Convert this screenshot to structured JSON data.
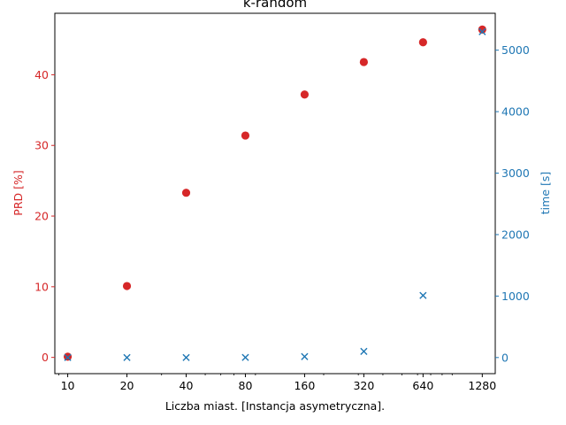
{
  "chart_data": {
    "type": "scatter",
    "title": "k-random",
    "xlabel": "Liczba miast. [Instancja asymetryczna].",
    "ylabel_left": "PRD [%]",
    "ylabel_right": "time [s]",
    "x_scale": "log2",
    "x_ticks": [
      10,
      20,
      40,
      80,
      160,
      320,
      640,
      1280
    ],
    "x_tick_labels": [
      "10",
      "20",
      "40",
      "80",
      "160",
      "320",
      "640",
      "1280"
    ],
    "y_left_ticks": [
      0,
      10,
      20,
      30,
      40
    ],
    "y_left_tick_labels": [
      "0",
      "10",
      "20",
      "30",
      "40"
    ],
    "y_right_ticks": [
      0,
      1000,
      2000,
      3000,
      4000,
      5000
    ],
    "y_right_tick_labels": [
      "0",
      "1000",
      "2000",
      "3000",
      "4000",
      "5000"
    ],
    "y_left_lim": [
      -2.3,
      48.7
    ],
    "y_right_lim": [
      -262,
      5600
    ],
    "grid": false,
    "series": [
      {
        "axis": "left",
        "marker": "circle",
        "color": "#d62728",
        "x": [
          10,
          20,
          40,
          80,
          160,
          320,
          640,
          1280
        ],
        "y": [
          0.1,
          10.1,
          23.3,
          31.4,
          37.2,
          41.8,
          44.6,
          46.4
        ]
      },
      {
        "axis": "right",
        "marker": "x",
        "color": "#1f77b4",
        "x": [
          10,
          20,
          40,
          80,
          160,
          320,
          640,
          1280
        ],
        "y": [
          0,
          0,
          0,
          2,
          15,
          100,
          1010,
          5300
        ]
      }
    ],
    "left_axis_color": "#d62728",
    "right_axis_color": "#1f77b4"
  }
}
